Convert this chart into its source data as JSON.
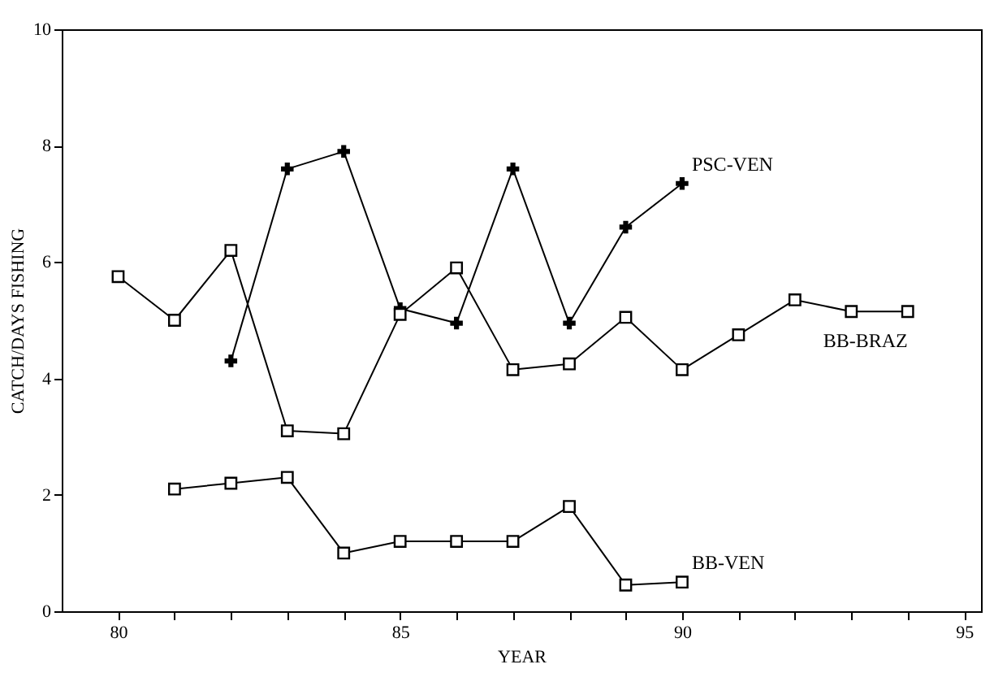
{
  "chart_data": {
    "type": "line",
    "xlabel": "YEAR",
    "ylabel": "CATCH/DAYS FISHING",
    "xlim": [
      79,
      95.3
    ],
    "xticks": [
      80,
      {
        "value": 81,
        "label": null
      },
      {
        "value": 82,
        "label": null
      },
      {
        "value": 83,
        "label": null
      },
      {
        "value": 84,
        "label": null
      },
      85,
      {
        "value": 86,
        "label": null
      },
      {
        "value": 87,
        "label": null
      },
      {
        "value": 88,
        "label": null
      },
      {
        "value": 89,
        "label": null
      },
      90,
      {
        "value": 91,
        "label": null
      },
      {
        "value": 92,
        "label": null
      },
      {
        "value": 93,
        "label": null
      },
      {
        "value": 94,
        "label": null
      },
      95
    ],
    "ylim": [
      0,
      10
    ],
    "yticks": [
      0,
      2,
      4,
      6,
      8,
      10
    ],
    "grid": false,
    "series": [
      {
        "name": "PSC-VEN",
        "color": "#000000",
        "marker": "cross",
        "x": [
          82,
          83,
          84,
          85,
          86,
          87,
          88,
          89,
          90
        ],
        "values": [
          4.3,
          7.6,
          7.9,
          5.2,
          4.95,
          7.6,
          4.95,
          6.6,
          7.35
        ]
      },
      {
        "name": "BB-BRAZ",
        "color": "#000000",
        "marker": "square",
        "x": [
          80,
          81,
          82,
          83,
          84,
          85,
          86,
          87,
          88,
          89,
          90,
          91,
          92,
          93,
          94
        ],
        "values": [
          5.75,
          5.0,
          6.2,
          3.1,
          3.05,
          5.1,
          5.9,
          4.15,
          4.25,
          5.05,
          4.15,
          4.75,
          5.35,
          5.15,
          5.15
        ]
      },
      {
        "name": "BB-VEN",
        "color": "#000000",
        "marker": "square",
        "x": [
          81,
          82,
          83,
          84,
          85,
          86,
          87,
          88,
          89,
          90
        ],
        "values": [
          2.1,
          2.2,
          2.3,
          1.0,
          1.2,
          1.2,
          1.2,
          1.8,
          0.45,
          0.5
        ]
      }
    ]
  }
}
